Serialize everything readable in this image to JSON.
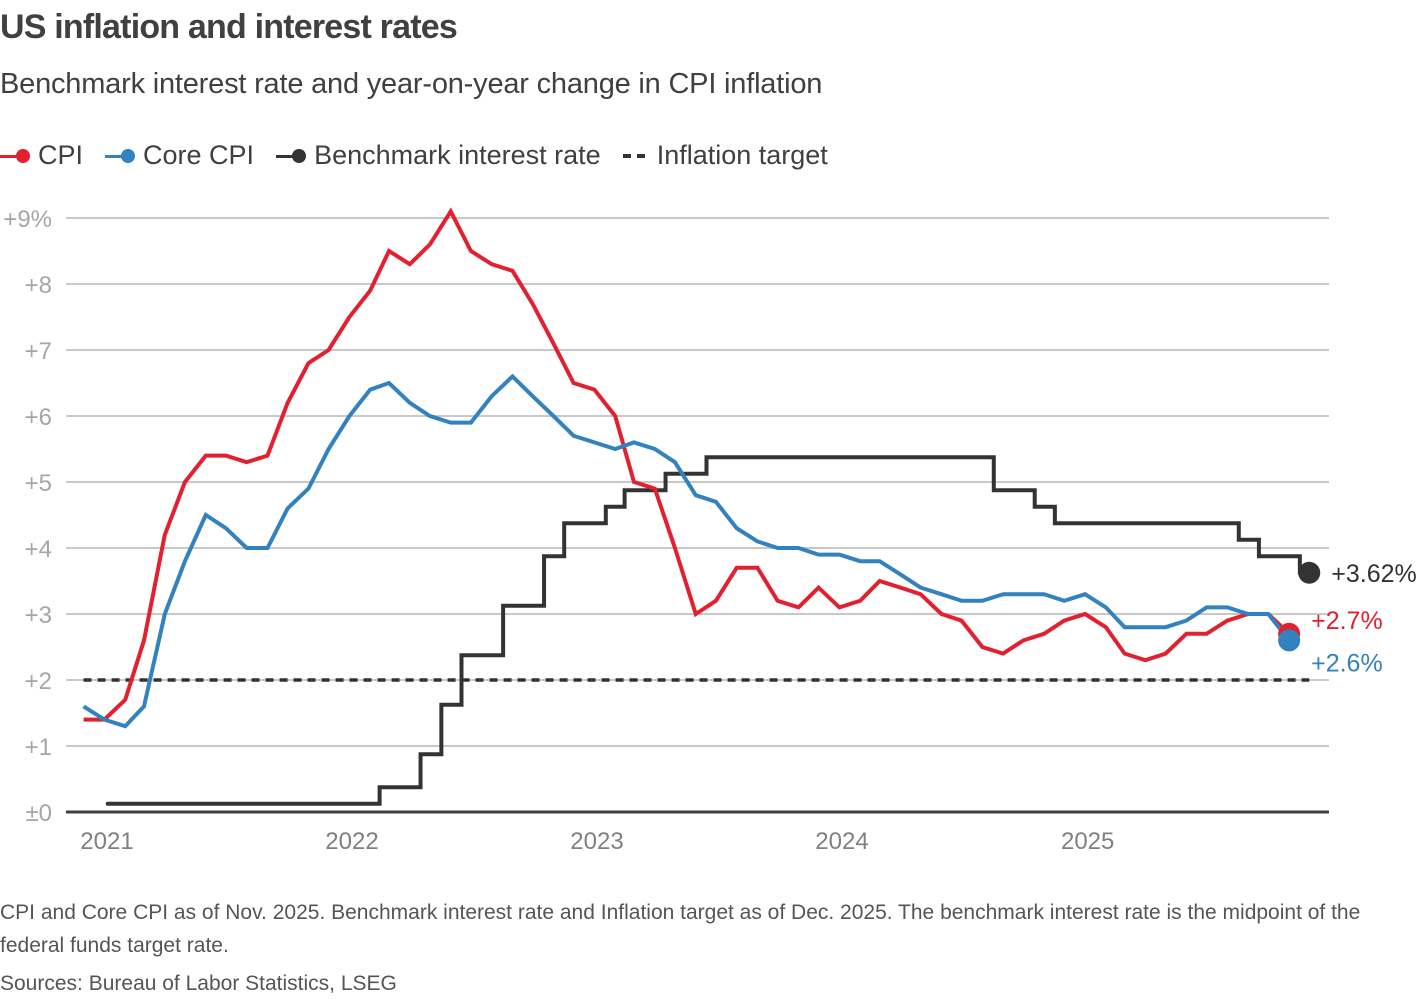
{
  "title": "US inflation and interest rates",
  "subtitle": "Benchmark interest rate and year-on-year change in CPI inflation",
  "legend": [
    {
      "label": "CPI",
      "color": "#e3202f",
      "style": "line-dot"
    },
    {
      "label": "Core CPI",
      "color": "#3282bf",
      "style": "line-dot"
    },
    {
      "label": "Benchmark interest rate",
      "color": "#333333",
      "style": "line-dot"
    },
    {
      "label": "Inflation target",
      "color": "#333333",
      "style": "dashed"
    }
  ],
  "footnote": "CPI and Core CPI as of Nov. 2025. Benchmark interest rate and Inflation target as of Dec. 2025. The benchmark interest rate is the midpoint of the federal funds target rate.",
  "sources": "Sources: Bureau of Labor Statistics, LSEG",
  "chart_data": {
    "type": "line",
    "title": "US inflation and interest rates",
    "subtitle": "Benchmark interest rate and year-on-year change in CPI inflation",
    "xlabel": "",
    "ylabel": "",
    "ylim": [
      0,
      9
    ],
    "yticks": [
      {
        "value": 9,
        "label": "+9%"
      },
      {
        "value": 8,
        "label": "+8"
      },
      {
        "value": 7,
        "label": "+7"
      },
      {
        "value": 6,
        "label": "+6"
      },
      {
        "value": 5,
        "label": "+5"
      },
      {
        "value": 4,
        "label": "+4"
      },
      {
        "value": 3,
        "label": "+3"
      },
      {
        "value": 2,
        "label": "+2"
      },
      {
        "value": 1,
        "label": "+1"
      },
      {
        "value": 0,
        "label": "±0"
      }
    ],
    "xticks": [
      {
        "date": "2021-01-01",
        "label": "2021"
      },
      {
        "date": "2022-01-01",
        "label": "2022"
      },
      {
        "date": "2023-01-01",
        "label": "2023"
      },
      {
        "date": "2024-01-01",
        "label": "2024"
      },
      {
        "date": "2025-01-01",
        "label": "2025"
      }
    ],
    "grid": true,
    "legend_position": "top-left",
    "months": [
      "2020-12",
      "2021-01",
      "2021-02",
      "2021-03",
      "2021-04",
      "2021-05",
      "2021-06",
      "2021-07",
      "2021-08",
      "2021-09",
      "2021-10",
      "2021-11",
      "2021-12",
      "2022-01",
      "2022-02",
      "2022-03",
      "2022-04",
      "2022-05",
      "2022-06",
      "2022-07",
      "2022-08",
      "2022-09",
      "2022-10",
      "2022-11",
      "2022-12",
      "2023-01",
      "2023-02",
      "2023-03",
      "2023-04",
      "2023-05",
      "2023-06",
      "2023-07",
      "2023-08",
      "2023-09",
      "2023-10",
      "2023-11",
      "2023-12",
      "2024-01",
      "2024-02",
      "2024-03",
      "2024-04",
      "2024-05",
      "2024-06",
      "2024-07",
      "2024-08",
      "2024-09",
      "2024-10",
      "2024-11",
      "2024-12",
      "2025-01",
      "2025-02",
      "2025-03",
      "2025-04",
      "2025-05",
      "2025-06",
      "2025-07",
      "2025-08",
      "2025-09",
      "2025-10",
      "2025-11"
    ],
    "series": [
      {
        "name": "CPI",
        "color": "#e3202f",
        "values": [
          1.4,
          1.4,
          1.7,
          2.6,
          4.2,
          5.0,
          5.4,
          5.4,
          5.3,
          5.4,
          6.2,
          6.8,
          7.0,
          7.5,
          7.9,
          8.5,
          8.3,
          8.6,
          9.1,
          8.5,
          8.3,
          8.2,
          7.7,
          7.1,
          6.5,
          6.4,
          6.0,
          5.0,
          4.9,
          4.0,
          3.0,
          3.2,
          3.7,
          3.7,
          3.2,
          3.1,
          3.4,
          3.1,
          3.2,
          3.5,
          3.4,
          3.3,
          3.0,
          2.9,
          2.5,
          2.4,
          2.6,
          2.7,
          2.9,
          3.0,
          2.8,
          2.4,
          2.3,
          2.4,
          2.7,
          2.7,
          2.9,
          3.0,
          3.0,
          2.7
        ],
        "end_label": "+2.7%"
      },
      {
        "name": "Core CPI",
        "color": "#3282bf",
        "values": [
          1.6,
          1.4,
          1.3,
          1.6,
          3.0,
          3.8,
          4.5,
          4.3,
          4.0,
          4.0,
          4.6,
          4.9,
          5.5,
          6.0,
          6.4,
          6.5,
          6.2,
          6.0,
          5.9,
          5.9,
          6.3,
          6.6,
          6.3,
          6.0,
          5.7,
          5.6,
          5.5,
          5.6,
          5.5,
          5.3,
          4.8,
          4.7,
          4.3,
          4.1,
          4.0,
          4.0,
          3.9,
          3.9,
          3.8,
          3.8,
          3.6,
          3.4,
          3.3,
          3.2,
          3.2,
          3.3,
          3.3,
          3.3,
          3.2,
          3.3,
          3.1,
          2.8,
          2.8,
          2.8,
          2.9,
          3.1,
          3.1,
          3.0,
          3.0,
          2.6
        ],
        "end_label": "+2.6%"
      },
      {
        "name": "Benchmark interest rate",
        "color": "#333333",
        "type": "step",
        "start": "2021-01-20",
        "end": "2025-12-15",
        "steps": [
          {
            "date": "2021-01-20",
            "value": 0.125
          },
          {
            "date": "2022-03-01",
            "value": 0.375
          },
          {
            "date": "2022-05-01",
            "value": 0.875
          },
          {
            "date": "2022-06-01",
            "value": 1.625
          },
          {
            "date": "2022-07-01",
            "value": 2.375
          },
          {
            "date": "2022-09-01",
            "value": 3.125
          },
          {
            "date": "2022-11-01",
            "value": 3.875
          },
          {
            "date": "2022-12-01",
            "value": 4.375
          },
          {
            "date": "2023-02-01",
            "value": 4.625
          },
          {
            "date": "2023-03-01",
            "value": 4.875
          },
          {
            "date": "2023-05-01",
            "value": 5.125
          },
          {
            "date": "2023-07-01",
            "value": 5.375
          },
          {
            "date": "2024-09-01",
            "value": 4.875
          },
          {
            "date": "2024-11-01",
            "value": 4.625
          },
          {
            "date": "2024-12-01",
            "value": 4.375
          },
          {
            "date": "2025-09-01",
            "value": 4.125
          },
          {
            "date": "2025-10-01",
            "value": 3.875
          },
          {
            "date": "2025-12-01",
            "value": 3.625
          }
        ],
        "end_label": "+3.62%"
      },
      {
        "name": "Inflation target",
        "color": "#333333",
        "type": "dashed",
        "start": "2020-12-15",
        "end": "2025-12-15",
        "value": 2
      }
    ]
  }
}
